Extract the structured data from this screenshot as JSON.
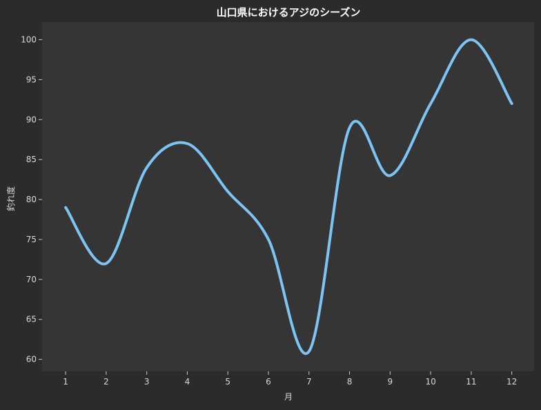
{
  "chart_data": {
    "type": "line",
    "title": "山口県におけるアジのシーズン",
    "xlabel": "月",
    "ylabel": "釣れ度",
    "x": [
      1,
      2,
      3,
      4,
      5,
      6,
      7,
      8,
      9,
      10,
      11,
      12
    ],
    "xticks": [
      "1",
      "2",
      "3",
      "4",
      "5",
      "6",
      "7",
      "8",
      "9",
      "10",
      "11",
      "12"
    ],
    "yticks": [
      "60",
      "65",
      "70",
      "75",
      "80",
      "85",
      "90",
      "95",
      "100"
    ],
    "xlim": [
      0.42,
      12.55
    ],
    "ylim": [
      58.5,
      102.2
    ],
    "grid": false,
    "smooth": true,
    "series": [
      {
        "values": [
          79,
          72,
          84,
          87,
          81,
          75,
          61,
          89,
          83,
          92,
          100,
          92
        ],
        "color": "#7cc4f4"
      }
    ],
    "colors": {
      "background": "#2b2b2b",
      "plot_background": "#353535",
      "text": "#d8d8d8",
      "title": "#ffffff",
      "axis": "#cccccc"
    }
  }
}
